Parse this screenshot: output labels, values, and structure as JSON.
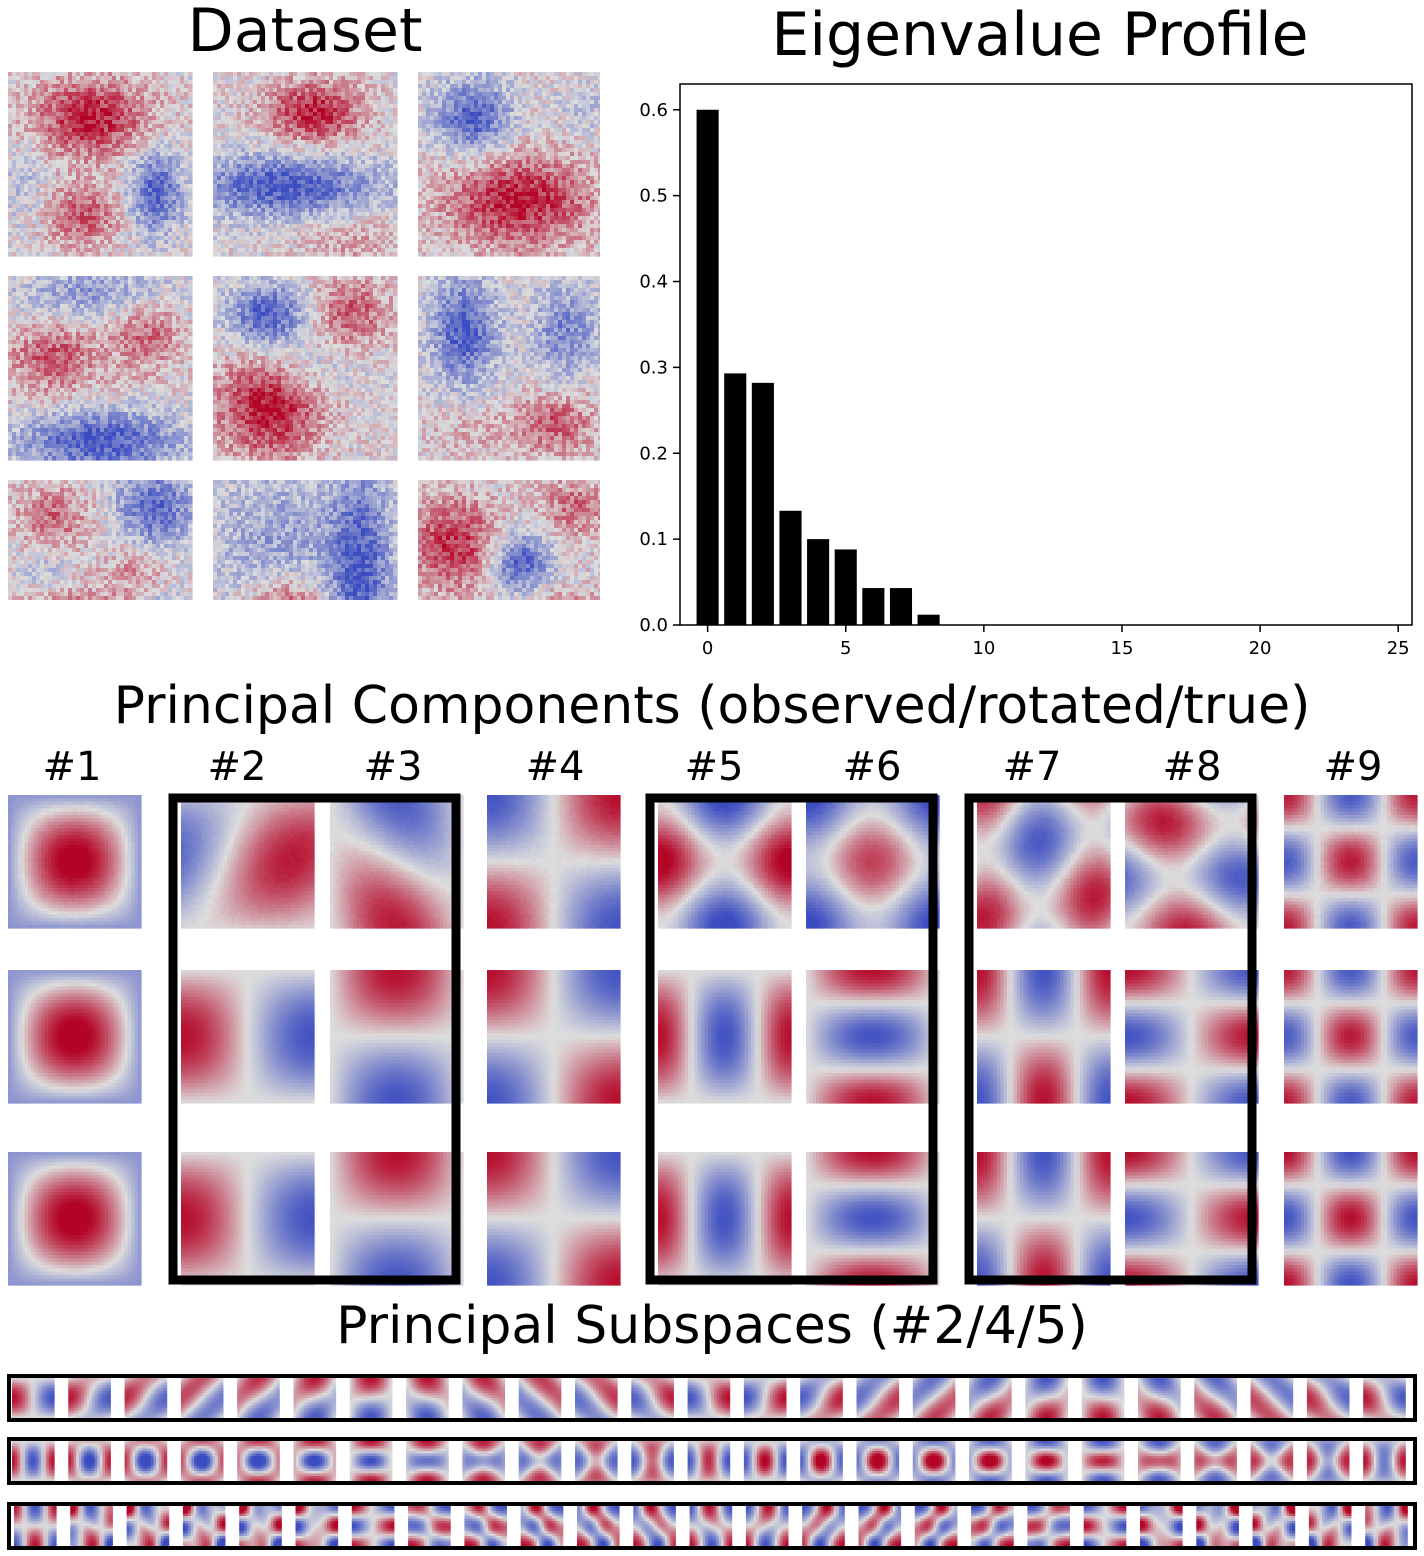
{
  "titles": {
    "dataset": "Dataset",
    "eigen": "Eigenvalue Profile",
    "components": "Principal Components (observed/rotated/true)",
    "subspaces": "Principal Subspaces (#2/4/5)"
  },
  "component_labels": [
    "#1",
    "#2",
    "#3",
    "#4",
    "#5",
    "#6",
    "#7",
    "#8",
    "#9"
  ],
  "colormap": {
    "negative": "#3b4cc0",
    "neutral": "#dddddd",
    "positive": "#b40426",
    "bars": "#000000"
  },
  "chart_data": {
    "type": "bar",
    "x": [
      0,
      1,
      2,
      3,
      4,
      5,
      6,
      7,
      8
    ],
    "values": [
      0.6,
      0.293,
      0.282,
      0.133,
      0.1,
      0.088,
      0.043,
      0.043,
      0.012
    ],
    "xlim": [
      -1,
      25.5
    ],
    "ylim": [
      0,
      0.63
    ],
    "xticks": [
      0,
      5,
      10,
      15,
      20,
      25
    ],
    "yticks": [
      0.0,
      0.1,
      0.2,
      0.3,
      0.4,
      0.5,
      0.6
    ],
    "xtick_labels": [
      "0",
      "5",
      "10",
      "15",
      "20",
      "25"
    ],
    "ytick_labels": [
      "0.0",
      "0.1",
      "0.2",
      "0.3",
      "0.4",
      "0.5",
      "0.6"
    ],
    "title": "Eigenvalue Profile",
    "xlabel": "",
    "ylabel": ""
  }
}
